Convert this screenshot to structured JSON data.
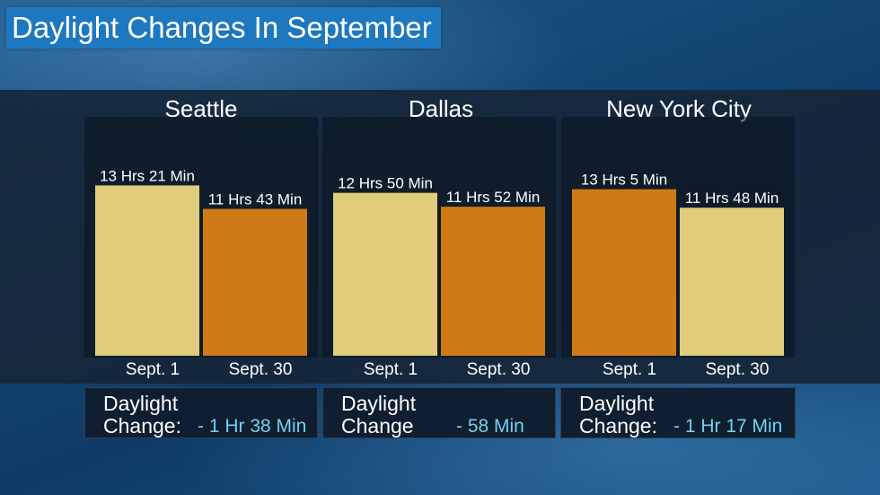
{
  "title": "Daylight Changes In September",
  "colors": {
    "light_bar": "#e0cc7a",
    "dark_bar": "#cf7a14",
    "title_bg": "#1e78c0",
    "change_value": "#6fd2ef"
  },
  "chart_data": [
    {
      "type": "bar",
      "title": "Seattle",
      "categories": [
        "Sept. 1",
        "Sept. 30"
      ],
      "values": [
        13.35,
        11.7167
      ],
      "value_labels": [
        "13 Hrs 21 Min",
        "11 Hrs 43 Min"
      ],
      "bar_colors": [
        "#e0cc7a",
        "#cf7a14"
      ],
      "change_label": "Daylight",
      "change_label2": "Change:",
      "change_value": "- 1 Hr 38 Min"
    },
    {
      "type": "bar",
      "title": "Dallas",
      "categories": [
        "Sept. 1",
        "Sept. 30"
      ],
      "values": [
        12.8333,
        11.8667
      ],
      "value_labels": [
        "12 Hrs 50 Min",
        "11 Hrs 52 Min"
      ],
      "bar_colors": [
        "#e0cc7a",
        "#cf7a14"
      ],
      "change_label": "Daylight",
      "change_label2": "Change",
      "change_value": "- 58 Min"
    },
    {
      "type": "bar",
      "title": "New York City",
      "categories": [
        "Sept. 1",
        "Sept. 30"
      ],
      "values": [
        13.0833,
        11.8
      ],
      "value_labels": [
        "13 Hrs 5 Min",
        "11 Hrs 48 Min"
      ],
      "bar_colors": [
        "#cf7a14",
        "#e0cc7a"
      ],
      "change_label": "Daylight",
      "change_label2": "Change:",
      "change_value": "- 1 Hr 17 Min"
    }
  ]
}
